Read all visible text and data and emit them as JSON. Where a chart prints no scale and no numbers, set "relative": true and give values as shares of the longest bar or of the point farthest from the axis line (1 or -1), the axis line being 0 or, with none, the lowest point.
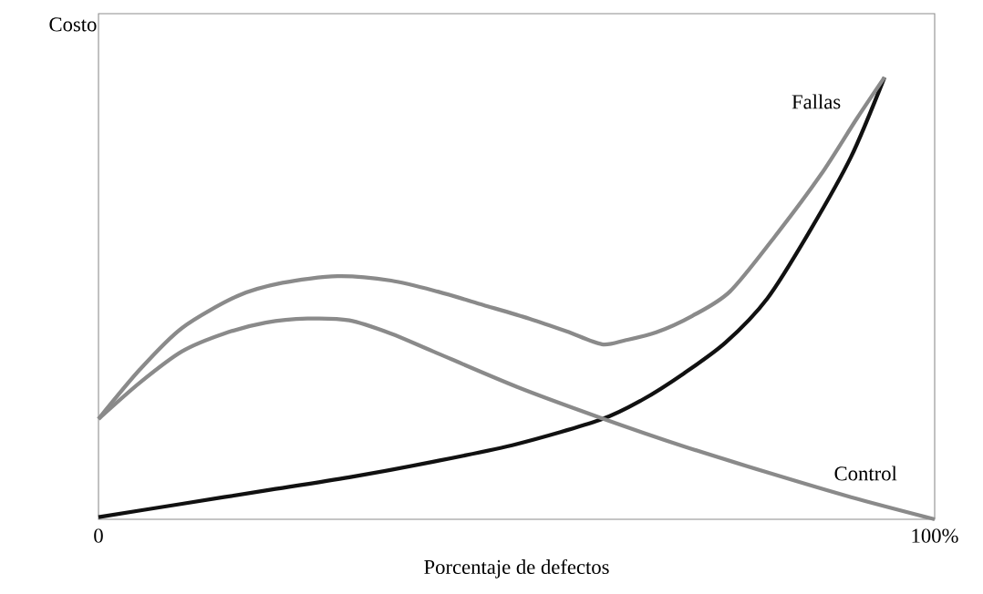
{
  "chart_data": {
    "type": "line",
    "relative": true,
    "xlabel": "Porcentaje de defectos",
    "ylabel": "Costo",
    "xlim": [
      0,
      100
    ],
    "xticks": [
      0,
      {
        "value": 100,
        "label": "100%"
      }
    ],
    "series": [
      {
        "name": "Fallas",
        "color": "#111111",
        "x": [
          0,
          10,
          20,
          30,
          40,
          50,
          60,
          65,
          70,
          75,
          80,
          85,
          90,
          94
        ],
        "values": [
          0.005,
          0.035,
          0.065,
          0.095,
          0.13,
          0.17,
          0.225,
          0.27,
          0.33,
          0.4,
          0.5,
          0.65,
          0.82,
          1.0
        ]
      },
      {
        "name": "Control",
        "color": "#8a8a8a",
        "x": [
          0,
          5,
          10,
          15,
          20,
          25,
          30,
          35,
          40,
          50,
          60,
          70,
          80,
          90,
          100
        ],
        "values": [
          0.227,
          0.31,
          0.38,
          0.42,
          0.445,
          0.454,
          0.45,
          0.42,
          0.38,
          0.3,
          0.23,
          0.165,
          0.106,
          0.05,
          0
        ]
      },
      {
        "color": "#8a8a8a",
        "x": [
          0,
          5,
          10,
          16.6,
          22,
          28.6,
          35,
          40.6,
          46,
          51.5,
          56,
          60.2,
          63,
          66.7,
          71,
          75.5,
          80.9,
          86.4,
          90.7,
          94
        ],
        "values": [
          0.227,
          0.34,
          0.433,
          0.505,
          0.535,
          0.55,
          0.54,
          0.515,
          0.485,
          0.454,
          0.425,
          0.396,
          0.405,
          0.423,
          0.46,
          0.515,
          0.64,
          0.78,
          0.907,
          1.0
        ]
      }
    ]
  }
}
